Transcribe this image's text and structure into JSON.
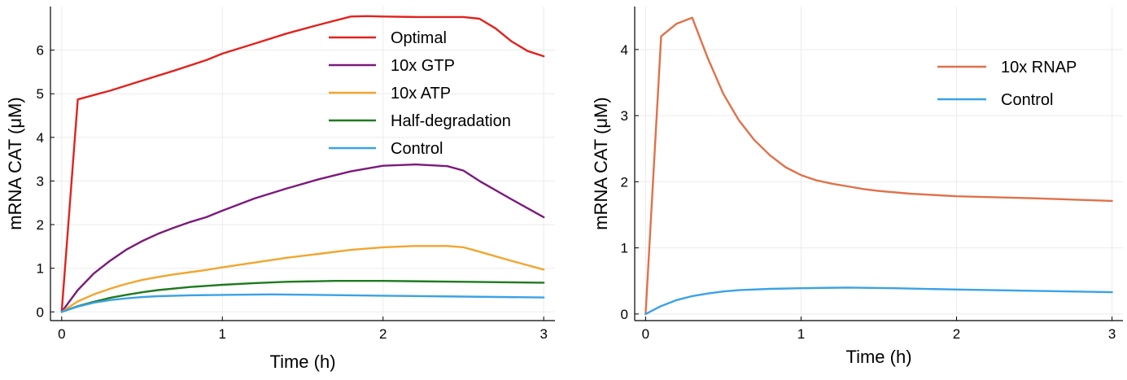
{
  "chart_data": [
    {
      "type": "line",
      "xlabel": "Time (h)",
      "ylabel": "mRNA CAT (μM)",
      "xlim": [
        -0.07,
        3.07
      ],
      "ylim": [
        -0.2,
        7.0
      ],
      "xticks": [
        0,
        1,
        2,
        3
      ],
      "yticks": [
        0,
        1,
        2,
        3,
        4,
        5,
        6
      ],
      "grid": true,
      "legend_position": "top-right",
      "series": [
        {
          "name": "Optimal",
          "color": "#e0231f",
          "x": [
            0,
            0.1,
            0.3,
            0.5,
            0.7,
            0.9,
            1.0,
            1.2,
            1.4,
            1.6,
            1.8,
            1.9,
            2.0,
            2.2,
            2.4,
            2.5,
            2.6,
            2.7,
            2.8,
            2.9,
            3.0
          ],
          "y": [
            0,
            4.87,
            5.07,
            5.3,
            5.53,
            5.77,
            5.92,
            6.15,
            6.38,
            6.58,
            6.77,
            6.78,
            6.77,
            6.76,
            6.76,
            6.76,
            6.72,
            6.5,
            6.2,
            5.98,
            5.86
          ]
        },
        {
          "name": "10x GTP",
          "color": "#7b1a7b",
          "x": [
            0,
            0.1,
            0.2,
            0.3,
            0.4,
            0.5,
            0.6,
            0.7,
            0.8,
            0.9,
            1.0,
            1.2,
            1.4,
            1.6,
            1.8,
            2.0,
            2.2,
            2.4,
            2.5,
            2.6,
            2.8,
            3.0
          ],
          "y": [
            0,
            0.5,
            0.88,
            1.17,
            1.42,
            1.62,
            1.79,
            1.93,
            2.06,
            2.17,
            2.32,
            2.6,
            2.83,
            3.04,
            3.22,
            3.35,
            3.38,
            3.34,
            3.24,
            3.0,
            2.58,
            2.17
          ]
        },
        {
          "name": "10x ATP",
          "color": "#f2a52e",
          "x": [
            0,
            0.1,
            0.2,
            0.3,
            0.4,
            0.5,
            0.6,
            0.7,
            0.8,
            0.9,
            1.0,
            1.2,
            1.4,
            1.6,
            1.8,
            2.0,
            2.2,
            2.4,
            2.5,
            2.6,
            2.8,
            3.0
          ],
          "y": [
            0,
            0.24,
            0.4,
            0.53,
            0.64,
            0.73,
            0.8,
            0.86,
            0.91,
            0.96,
            1.02,
            1.13,
            1.24,
            1.33,
            1.42,
            1.48,
            1.51,
            1.51,
            1.48,
            1.38,
            1.17,
            0.97
          ]
        },
        {
          "name": "Half-degradation",
          "color": "#1f7a1f",
          "x": [
            0,
            0.1,
            0.2,
            0.3,
            0.4,
            0.5,
            0.6,
            0.8,
            1.0,
            1.2,
            1.4,
            1.7,
            2.0,
            2.5,
            3.0
          ],
          "y": [
            0,
            0.13,
            0.23,
            0.32,
            0.39,
            0.45,
            0.5,
            0.57,
            0.62,
            0.66,
            0.69,
            0.71,
            0.71,
            0.69,
            0.67
          ]
        },
        {
          "name": "Control",
          "color": "#3aa2e8",
          "x": [
            0,
            0.1,
            0.2,
            0.3,
            0.4,
            0.5,
            0.6,
            0.8,
            1.0,
            1.3,
            1.6,
            2.0,
            2.5,
            3.0
          ],
          "y": [
            0,
            0.12,
            0.21,
            0.27,
            0.31,
            0.34,
            0.36,
            0.38,
            0.39,
            0.4,
            0.39,
            0.37,
            0.35,
            0.33
          ]
        }
      ]
    },
    {
      "type": "line",
      "xlabel": "Time (h)",
      "ylabel": "mRNA CAT (μM)",
      "xlim": [
        -0.07,
        3.07
      ],
      "ylim": [
        -0.1,
        4.65
      ],
      "xticks": [
        0,
        1,
        2,
        3
      ],
      "yticks": [
        0,
        1,
        2,
        3,
        4
      ],
      "grid": true,
      "legend_position": "top-right",
      "series": [
        {
          "name": "10x RNAP",
          "color": "#e0714a",
          "x": [
            0,
            0.1,
            0.2,
            0.3,
            0.4,
            0.5,
            0.6,
            0.7,
            0.8,
            0.9,
            1.0,
            1.1,
            1.2,
            1.3,
            1.4,
            1.5,
            1.7,
            2.0,
            2.5,
            3.0
          ],
          "y": [
            0,
            4.2,
            4.39,
            4.48,
            3.87,
            3.33,
            2.93,
            2.63,
            2.4,
            2.22,
            2.1,
            2.02,
            1.97,
            1.93,
            1.89,
            1.86,
            1.82,
            1.78,
            1.75,
            1.71
          ]
        },
        {
          "name": "Control",
          "color": "#3aa2e8",
          "x": [
            0,
            0.1,
            0.2,
            0.3,
            0.4,
            0.5,
            0.6,
            0.8,
            1.0,
            1.3,
            1.6,
            2.0,
            2.5,
            3.0
          ],
          "y": [
            0,
            0.12,
            0.21,
            0.27,
            0.31,
            0.34,
            0.36,
            0.38,
            0.39,
            0.4,
            0.39,
            0.37,
            0.35,
            0.33
          ]
        }
      ]
    }
  ]
}
